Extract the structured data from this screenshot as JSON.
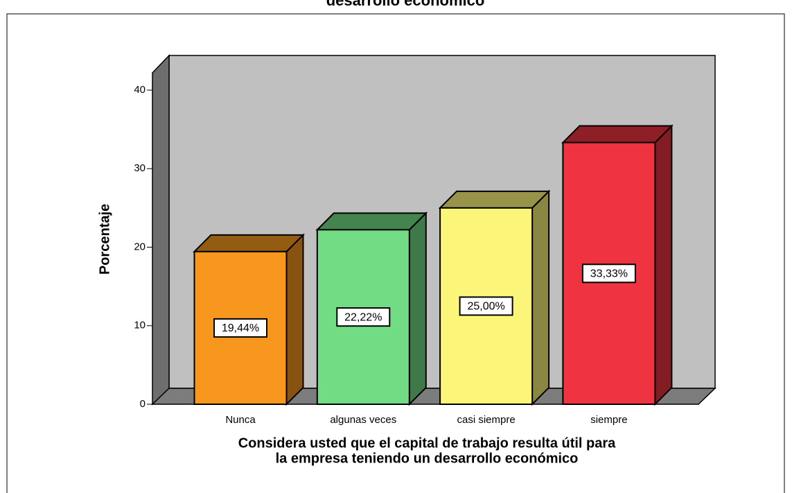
{
  "chart_data": {
    "type": "bar3d",
    "title": "desarrollo económico",
    "categories": [
      "Nunca",
      "algunas veces",
      "casi siempre",
      "siempre"
    ],
    "values": [
      19.44,
      22.22,
      25.0,
      33.33
    ],
    "value_labels": [
      "19,44%",
      "22,22%",
      "25,00%",
      "33,33%"
    ],
    "colors": [
      "#f7971e",
      "#72dc84",
      "#fbf57a",
      "#ef3340"
    ],
    "ylabel": "Porcentaje",
    "xlabel": [
      "Considera usted que el capital de trabajo resulta útil para",
      "la empresa teniendo un desarrollo económico"
    ],
    "ylim": [
      0,
      40
    ],
    "yticks": [
      0,
      10,
      20,
      30,
      40
    ]
  }
}
